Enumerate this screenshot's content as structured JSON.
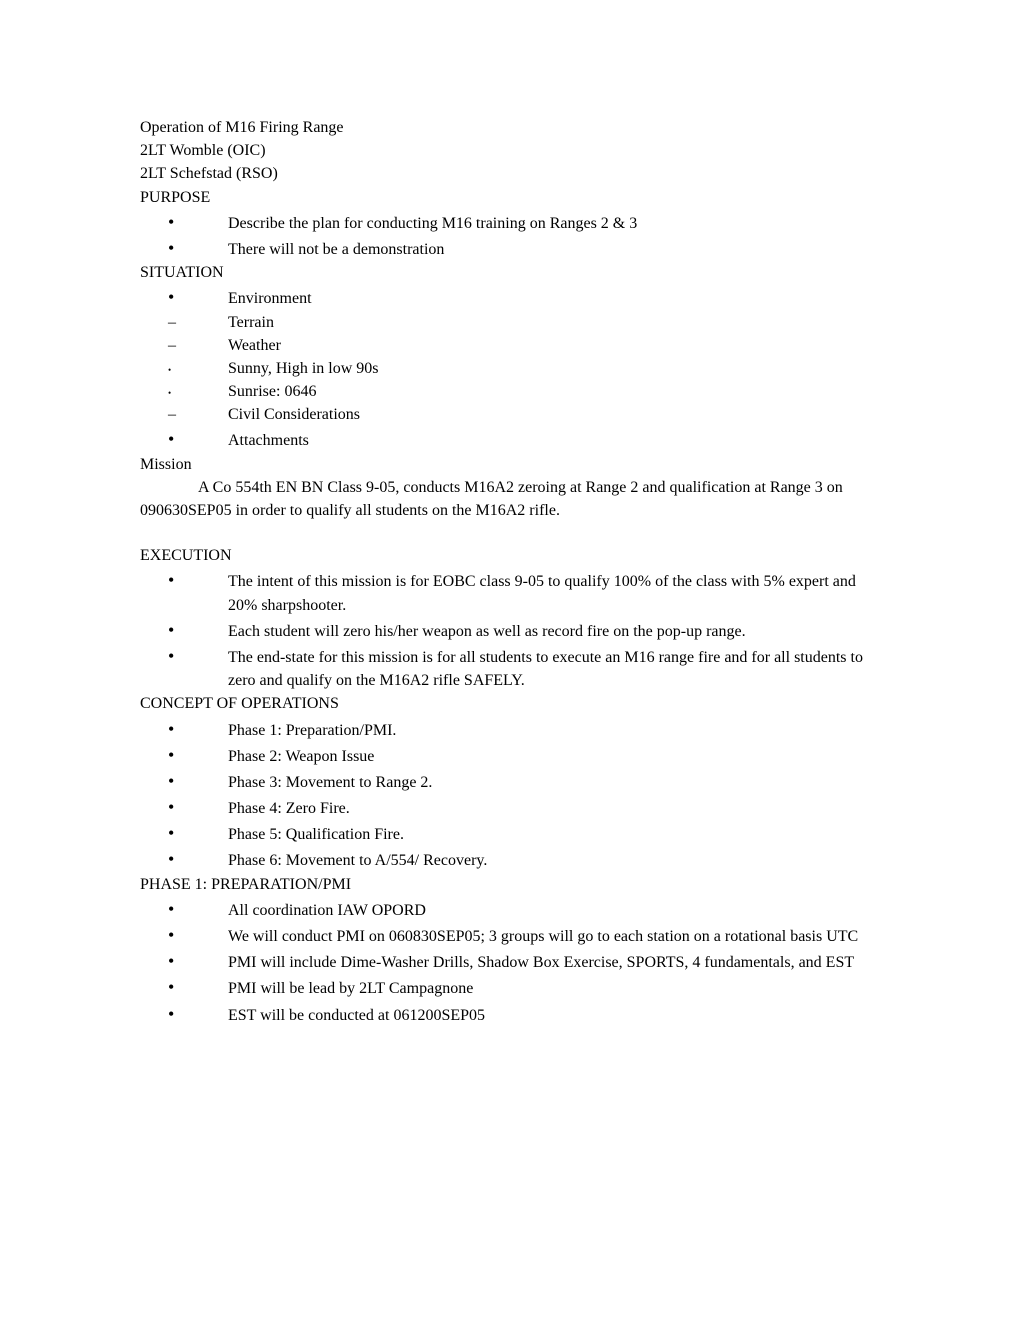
{
  "header": {
    "title": "Operation of M16 Firing Range",
    "oic": "2LT Womble (OIC)",
    "rso": "2LT Schefstad (RSO)"
  },
  "purpose": {
    "heading": "PURPOSE",
    "items": [
      "Describe the plan for conducting M16 training on Ranges 2 & 3",
      "There will not be a demonstration"
    ]
  },
  "situation": {
    "heading": "SITUATION",
    "items": [
      {
        "mark": "big-dot",
        "text": "Environment"
      },
      {
        "mark": "dash",
        "text": "Terrain"
      },
      {
        "mark": "dash",
        "text": "Weather"
      },
      {
        "mark": "small-dot",
        "text": "Sunny, High in low 90s"
      },
      {
        "mark": "small-dot",
        "text": "Sunrise: 0646"
      },
      {
        "mark": "dash",
        "text": "Civil Considerations"
      },
      {
        "mark": "big-dot",
        "text": "Attachments"
      }
    ]
  },
  "mission": {
    "heading": "Mission",
    "body": "A Co 554th EN BN Class 9-05, conducts M16A2 zeroing at Range 2 and qualification at Range 3 on 090630SEP05 in order to qualify all students on the M16A2 rifle."
  },
  "execution": {
    "heading": "EXECUTION",
    "items": [
      "The intent of this mission is for EOBC class 9-05 to qualify 100% of the class with 5% expert and 20% sharpshooter.",
      "Each student will zero his/her weapon as well as record fire on the pop-up range.",
      "The end-state for this mission is for all students to execute an M16 range fire and for all students to zero and qualify on the M16A2 rifle SAFELY."
    ]
  },
  "concept": {
    "heading": "CONCEPT OF OPERATIONS",
    "items": [
      "Phase 1:  Preparation/PMI.",
      "Phase 2:  Weapon Issue",
      "Phase 3:  Movement to Range 2.",
      "Phase 4:  Zero Fire.",
      "Phase 5:  Qualification Fire.",
      "Phase 6:  Movement to A/554/ Recovery."
    ]
  },
  "phase1": {
    "heading": "PHASE 1: PREPARATION/PMI",
    "items": [
      "All coordination IAW OPORD",
      "We will conduct PMI on 060830SEP05; 3 groups will go to each station on a rotational basis UTC",
      "PMI will include Dime-Washer Drills, Shadow Box Exercise, SPORTS, 4 fundamentals, and EST",
      "PMI will be lead by 2LT Campagnone",
      "EST will be conducted at 061200SEP05"
    ]
  }
}
